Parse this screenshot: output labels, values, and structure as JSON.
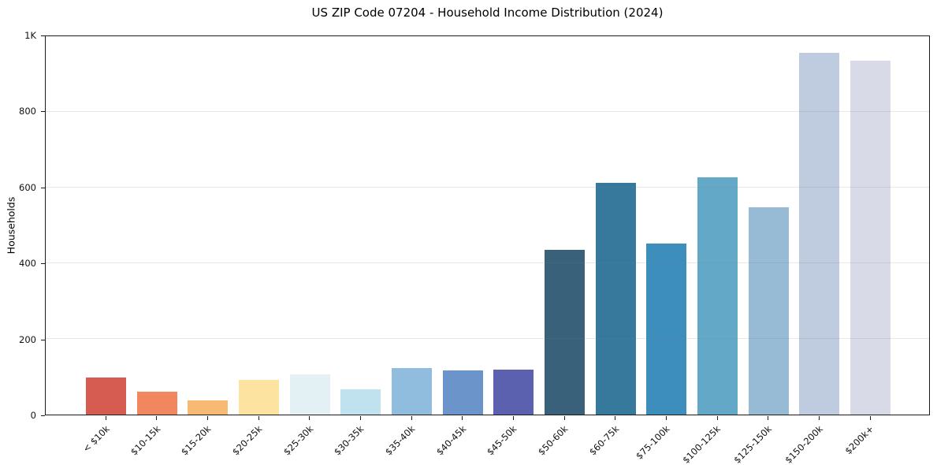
{
  "chart_data": {
    "type": "bar",
    "title": "US ZIP Code 07204 - Household Income Distribution (2024)",
    "xlabel": "",
    "ylabel": "Households",
    "categories": [
      "< $10k",
      "$10-15k",
      "$15-20k",
      "$20-25k",
      "$25-30k",
      "$30-35k",
      "$35-40k",
      "$40-45k",
      "$45-50k",
      "$50-60k",
      "$60-75k",
      "$75-100k",
      "$100-125k",
      "$125-150k",
      "$150-200k",
      "$200k+"
    ],
    "values": [
      98,
      60,
      37,
      91,
      106,
      66,
      123,
      117,
      119,
      434,
      610,
      450,
      625,
      546,
      952,
      931
    ],
    "bar_colors": [
      "#d65c51",
      "#f0875e",
      "#f8ba73",
      "#fde3a0",
      "#e4f1f4",
      "#c0e2ee",
      "#90bddd",
      "#6b94ca",
      "#5b60af",
      "#3a617a",
      "#37799d",
      "#3d8ebd",
      "#64a8c8",
      "#97bad5",
      "#bfcbdf",
      "#d8dae7"
    ],
    "ylim": [
      0,
      1000
    ],
    "yticks": [
      {
        "value": 0,
        "label": "0"
      },
      {
        "value": 200,
        "label": "200"
      },
      {
        "value": 400,
        "label": "400"
      },
      {
        "value": 600,
        "label": "600"
      },
      {
        "value": 800,
        "label": "800"
      },
      {
        "value": 1000,
        "label": "1K"
      }
    ],
    "grid": "horizontal",
    "legend": "none"
  },
  "colors": {
    "background": "#ffffff",
    "axis": "#1a1a1a",
    "grid_over_bars": "rgba(128,128,128,0.18)",
    "text": "#111111"
  }
}
